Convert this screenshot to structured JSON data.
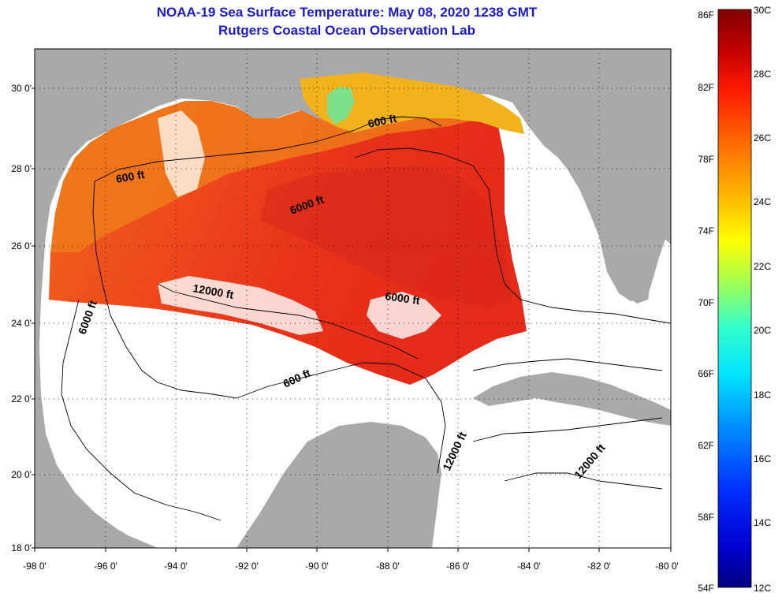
{
  "header": {
    "title": "NOAA-19 Sea Surface Temperature:  May 08, 2020 1238 GMT",
    "subtitle": "Rutgers Coastal Ocean Observation Lab"
  },
  "axes": {
    "lat_ticks": [
      "30 0'",
      "28 0'",
      "26 0'",
      "24 0'",
      "22 0'",
      "20 0'",
      "18 0'"
    ],
    "lon_ticks": [
      "-98 0'",
      "-96 0'",
      "-94 0'",
      "-92 0'",
      "-90 0'",
      "-88 0'",
      "-86 0'",
      "-84 0'",
      "-82 0'",
      "-80 0'"
    ],
    "lat_range": [
      18,
      31
    ],
    "lon_range": [
      -98,
      -80
    ]
  },
  "contour_labels": [
    "600 ft",
    "6000 ft",
    "600 ft",
    "12000 ft",
    "6000 ft",
    "6000 ft",
    "600 ft",
    "12000 ft",
    "12000 ft"
  ],
  "colorbar": {
    "fahrenheit": [
      "86F",
      "82F",
      "78F",
      "74F",
      "70F",
      "66F",
      "62F",
      "58F",
      "54F"
    ],
    "celsius": [
      "30C",
      "28C",
      "26C",
      "24C",
      "22C",
      "20C",
      "18C",
      "16C",
      "14C",
      "12C"
    ],
    "range_c": [
      12,
      30
    ]
  },
  "colors": {
    "land": "#a9a9a9",
    "title": "#1a1acc",
    "sst_warm": "#e8321a",
    "sst_mid": "#f07a1a",
    "sst_coast": "#f2b21c"
  }
}
